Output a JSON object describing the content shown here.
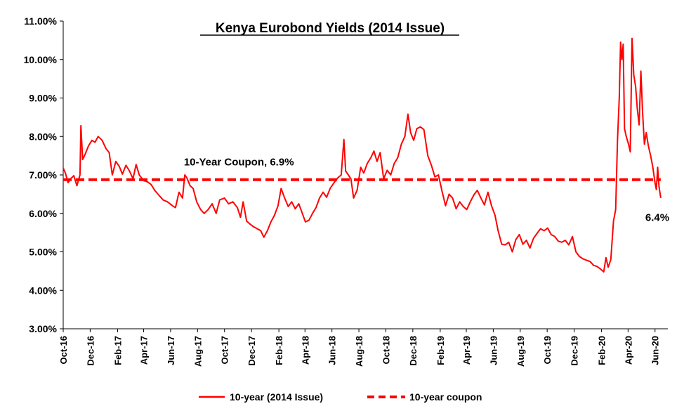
{
  "chart_data": {
    "type": "line",
    "title": "Kenya Eurobond  Yields (2014 Issue)",
    "xlabel": "",
    "ylabel": "",
    "ylim": [
      0.03,
      0.11
    ],
    "y_ticks": [
      "3.00%",
      "4.00%",
      "5.00%",
      "6.00%",
      "7.00%",
      "8.00%",
      "9.00%",
      "10.00%",
      "11.00%"
    ],
    "x_range": [
      "2016-10-01",
      "2020-06-30"
    ],
    "x_ticks": [
      {
        "label": "Oct-16",
        "date": "2016-10-01"
      },
      {
        "label": "Dec-16",
        "date": "2016-12-01"
      },
      {
        "label": "Feb-17",
        "date": "2017-02-01"
      },
      {
        "label": "Apr-17",
        "date": "2017-04-01"
      },
      {
        "label": "Jun-17",
        "date": "2017-06-01"
      },
      {
        "label": "Aug-17",
        "date": "2017-08-01"
      },
      {
        "label": "Oct-17",
        "date": "2017-10-01"
      },
      {
        "label": "Dec-17",
        "date": "2017-12-01"
      },
      {
        "label": "Feb-18",
        "date": "2018-02-01"
      },
      {
        "label": "Apr-18",
        "date": "2018-04-01"
      },
      {
        "label": "Jun-18",
        "date": "2018-06-01"
      },
      {
        "label": "Aug-18",
        "date": "2018-08-01"
      },
      {
        "label": "Oct-18",
        "date": "2018-10-01"
      },
      {
        "label": "Dec-18",
        "date": "2018-12-01"
      },
      {
        "label": "Feb-19",
        "date": "2019-02-01"
      },
      {
        "label": "Apr-19",
        "date": "2019-04-01"
      },
      {
        "label": "Jun-19",
        "date": "2019-06-01"
      },
      {
        "label": "Aug-19",
        "date": "2019-08-01"
      },
      {
        "label": "Oct-19",
        "date": "2019-10-01"
      },
      {
        "label": "Dec-19",
        "date": "2019-12-01"
      },
      {
        "label": "Feb-20",
        "date": "2020-02-01"
      },
      {
        "label": "Apr-20",
        "date": "2020-04-01"
      },
      {
        "label": "Jun-20",
        "date": "2020-06-01"
      }
    ],
    "grid": false,
    "legend_position": "bottom",
    "series": [
      {
        "name": "10-year (2014 Issue)",
        "color": "#ff0000",
        "style": "solid",
        "points": [
          {
            "x": "2016-10-01",
            "y": 0.0718
          },
          {
            "x": "2016-10-06",
            "y": 0.0705
          },
          {
            "x": "2016-10-12",
            "y": 0.068
          },
          {
            "x": "2016-10-18",
            "y": 0.069
          },
          {
            "x": "2016-10-25",
            "y": 0.0698
          },
          {
            "x": "2016-11-01",
            "y": 0.0672
          },
          {
            "x": "2016-11-08",
            "y": 0.07
          },
          {
            "x": "2016-11-10",
            "y": 0.0828
          },
          {
            "x": "2016-11-14",
            "y": 0.074
          },
          {
            "x": "2016-11-20",
            "y": 0.0755
          },
          {
            "x": "2016-11-27",
            "y": 0.0775
          },
          {
            "x": "2016-12-05",
            "y": 0.079
          },
          {
            "x": "2016-12-12",
            "y": 0.0785
          },
          {
            "x": "2016-12-19",
            "y": 0.08
          },
          {
            "x": "2016-12-28",
            "y": 0.079
          },
          {
            "x": "2017-01-06",
            "y": 0.0768
          },
          {
            "x": "2017-01-13",
            "y": 0.0758
          },
          {
            "x": "2017-01-20",
            "y": 0.07
          },
          {
            "x": "2017-01-28",
            "y": 0.0735
          },
          {
            "x": "2017-02-05",
            "y": 0.0722
          },
          {
            "x": "2017-02-12",
            "y": 0.0702
          },
          {
            "x": "2017-02-20",
            "y": 0.0725
          },
          {
            "x": "2017-02-28",
            "y": 0.071
          },
          {
            "x": "2017-03-08",
            "y": 0.069
          },
          {
            "x": "2017-03-15",
            "y": 0.0727
          },
          {
            "x": "2017-03-22",
            "y": 0.07
          },
          {
            "x": "2017-04-01",
            "y": 0.0685
          },
          {
            "x": "2017-04-10",
            "y": 0.0682
          },
          {
            "x": "2017-04-18",
            "y": 0.0675
          },
          {
            "x": "2017-04-26",
            "y": 0.066
          },
          {
            "x": "2017-05-05",
            "y": 0.0648
          },
          {
            "x": "2017-05-15",
            "y": 0.0635
          },
          {
            "x": "2017-05-25",
            "y": 0.063
          },
          {
            "x": "2017-06-05",
            "y": 0.062
          },
          {
            "x": "2017-06-12",
            "y": 0.0615
          },
          {
            "x": "2017-06-20",
            "y": 0.0655
          },
          {
            "x": "2017-06-28",
            "y": 0.064
          },
          {
            "x": "2017-07-03",
            "y": 0.07
          },
          {
            "x": "2017-07-08",
            "y": 0.0692
          },
          {
            "x": "2017-07-15",
            "y": 0.0672
          },
          {
            "x": "2017-07-22",
            "y": 0.0665
          },
          {
            "x": "2017-07-30",
            "y": 0.063
          },
          {
            "x": "2017-08-08",
            "y": 0.061
          },
          {
            "x": "2017-08-16",
            "y": 0.06
          },
          {
            "x": "2017-08-25",
            "y": 0.061
          },
          {
            "x": "2017-09-03",
            "y": 0.0625
          },
          {
            "x": "2017-09-12",
            "y": 0.06
          },
          {
            "x": "2017-09-20",
            "y": 0.0635
          },
          {
            "x": "2017-10-01",
            "y": 0.064
          },
          {
            "x": "2017-10-10",
            "y": 0.0625
          },
          {
            "x": "2017-10-20",
            "y": 0.063
          },
          {
            "x": "2017-10-30",
            "y": 0.0615
          },
          {
            "x": "2017-11-06",
            "y": 0.059
          },
          {
            "x": "2017-11-12",
            "y": 0.063
          },
          {
            "x": "2017-11-20",
            "y": 0.058
          },
          {
            "x": "2017-11-28",
            "y": 0.0572
          },
          {
            "x": "2017-12-06",
            "y": 0.0565
          },
          {
            "x": "2017-12-14",
            "y": 0.056
          },
          {
            "x": "2017-12-22",
            "y": 0.0555
          },
          {
            "x": "2017-12-29",
            "y": 0.0538
          },
          {
            "x": "2018-01-06",
            "y": 0.0555
          },
          {
            "x": "2018-01-14",
            "y": 0.0578
          },
          {
            "x": "2018-01-22",
            "y": 0.0595
          },
          {
            "x": "2018-01-30",
            "y": 0.062
          },
          {
            "x": "2018-02-06",
            "y": 0.0665
          },
          {
            "x": "2018-02-14",
            "y": 0.064
          },
          {
            "x": "2018-02-22",
            "y": 0.0618
          },
          {
            "x": "2018-03-02",
            "y": 0.063
          },
          {
            "x": "2018-03-10",
            "y": 0.0612
          },
          {
            "x": "2018-03-18",
            "y": 0.0625
          },
          {
            "x": "2018-03-26",
            "y": 0.06
          },
          {
            "x": "2018-04-02",
            "y": 0.0578
          },
          {
            "x": "2018-04-10",
            "y": 0.0582
          },
          {
            "x": "2018-04-18",
            "y": 0.06
          },
          {
            "x": "2018-04-26",
            "y": 0.0615
          },
          {
            "x": "2018-05-04",
            "y": 0.064
          },
          {
            "x": "2018-05-12",
            "y": 0.0655
          },
          {
            "x": "2018-05-20",
            "y": 0.0642
          },
          {
            "x": "2018-05-28",
            "y": 0.0665
          },
          {
            "x": "2018-06-06",
            "y": 0.068
          },
          {
            "x": "2018-06-14",
            "y": 0.0692
          },
          {
            "x": "2018-06-22",
            "y": 0.07
          },
          {
            "x": "2018-06-28",
            "y": 0.0792
          },
          {
            "x": "2018-07-02",
            "y": 0.071
          },
          {
            "x": "2018-07-08",
            "y": 0.07
          },
          {
            "x": "2018-07-14",
            "y": 0.069
          },
          {
            "x": "2018-07-20",
            "y": 0.064
          },
          {
            "x": "2018-07-28",
            "y": 0.066
          },
          {
            "x": "2018-08-05",
            "y": 0.072
          },
          {
            "x": "2018-08-12",
            "y": 0.0705
          },
          {
            "x": "2018-08-20",
            "y": 0.073
          },
          {
            "x": "2018-08-28",
            "y": 0.0745
          },
          {
            "x": "2018-09-04",
            "y": 0.0762
          },
          {
            "x": "2018-09-11",
            "y": 0.0735
          },
          {
            "x": "2018-09-18",
            "y": 0.0758
          },
          {
            "x": "2018-09-26",
            "y": 0.069
          },
          {
            "x": "2018-10-04",
            "y": 0.0712
          },
          {
            "x": "2018-10-12",
            "y": 0.07
          },
          {
            "x": "2018-10-20",
            "y": 0.073
          },
          {
            "x": "2018-10-28",
            "y": 0.0745
          },
          {
            "x": "2018-11-05",
            "y": 0.078
          },
          {
            "x": "2018-11-13",
            "y": 0.08
          },
          {
            "x": "2018-11-20",
            "y": 0.0858
          },
          {
            "x": "2018-11-26",
            "y": 0.081
          },
          {
            "x": "2018-12-03",
            "y": 0.079
          },
          {
            "x": "2018-12-10",
            "y": 0.082
          },
          {
            "x": "2018-12-18",
            "y": 0.0825
          },
          {
            "x": "2018-12-26",
            "y": 0.0818
          },
          {
            "x": "2019-01-04",
            "y": 0.075
          },
          {
            "x": "2019-01-12",
            "y": 0.0725
          },
          {
            "x": "2019-01-20",
            "y": 0.0695
          },
          {
            "x": "2019-01-28",
            "y": 0.07
          },
          {
            "x": "2019-02-05",
            "y": 0.0658
          },
          {
            "x": "2019-02-13",
            "y": 0.062
          },
          {
            "x": "2019-02-21",
            "y": 0.065
          },
          {
            "x": "2019-03-01",
            "y": 0.064
          },
          {
            "x": "2019-03-09",
            "y": 0.0612
          },
          {
            "x": "2019-03-17",
            "y": 0.063
          },
          {
            "x": "2019-03-25",
            "y": 0.0618
          },
          {
            "x": "2019-04-02",
            "y": 0.061
          },
          {
            "x": "2019-04-10",
            "y": 0.063
          },
          {
            "x": "2019-04-18",
            "y": 0.0648
          },
          {
            "x": "2019-04-26",
            "y": 0.066
          },
          {
            "x": "2019-05-04",
            "y": 0.064
          },
          {
            "x": "2019-05-12",
            "y": 0.0622
          },
          {
            "x": "2019-05-20",
            "y": 0.0655
          },
          {
            "x": "2019-05-28",
            "y": 0.062
          },
          {
            "x": "2019-06-05",
            "y": 0.0595
          },
          {
            "x": "2019-06-12",
            "y": 0.0555
          },
          {
            "x": "2019-06-20",
            "y": 0.052
          },
          {
            "x": "2019-06-28",
            "y": 0.0518
          },
          {
            "x": "2019-07-06",
            "y": 0.0525
          },
          {
            "x": "2019-07-14",
            "y": 0.05
          },
          {
            "x": "2019-07-22",
            "y": 0.0532
          },
          {
            "x": "2019-07-30",
            "y": 0.0545
          },
          {
            "x": "2019-08-07",
            "y": 0.052
          },
          {
            "x": "2019-08-15",
            "y": 0.053
          },
          {
            "x": "2019-08-23",
            "y": 0.051
          },
          {
            "x": "2019-08-31",
            "y": 0.0535
          },
          {
            "x": "2019-09-08",
            "y": 0.0548
          },
          {
            "x": "2019-09-16",
            "y": 0.056
          },
          {
            "x": "2019-09-24",
            "y": 0.0555
          },
          {
            "x": "2019-10-02",
            "y": 0.0562
          },
          {
            "x": "2019-10-10",
            "y": 0.0545
          },
          {
            "x": "2019-10-18",
            "y": 0.054
          },
          {
            "x": "2019-10-26",
            "y": 0.0528
          },
          {
            "x": "2019-11-03",
            "y": 0.0525
          },
          {
            "x": "2019-11-11",
            "y": 0.053
          },
          {
            "x": "2019-11-19",
            "y": 0.0518
          },
          {
            "x": "2019-11-27",
            "y": 0.054
          },
          {
            "x": "2019-12-05",
            "y": 0.05
          },
          {
            "x": "2019-12-13",
            "y": 0.0488
          },
          {
            "x": "2019-12-21",
            "y": 0.0482
          },
          {
            "x": "2019-12-29",
            "y": 0.0478
          },
          {
            "x": "2020-01-06",
            "y": 0.0475
          },
          {
            "x": "2020-01-14",
            "y": 0.0465
          },
          {
            "x": "2020-01-22",
            "y": 0.0462
          },
          {
            "x": "2020-01-30",
            "y": 0.0455
          },
          {
            "x": "2020-02-06",
            "y": 0.0448
          },
          {
            "x": "2020-02-11",
            "y": 0.0485
          },
          {
            "x": "2020-02-16",
            "y": 0.046
          },
          {
            "x": "2020-02-22",
            "y": 0.048
          },
          {
            "x": "2020-02-28",
            "y": 0.058
          },
          {
            "x": "2020-03-04",
            "y": 0.061
          },
          {
            "x": "2020-03-08",
            "y": 0.079
          },
          {
            "x": "2020-03-12",
            "y": 0.09
          },
          {
            "x": "2020-03-15",
            "y": 0.1045
          },
          {
            "x": "2020-03-18",
            "y": 0.1
          },
          {
            "x": "2020-03-21",
            "y": 0.104
          },
          {
            "x": "2020-03-24",
            "y": 0.082
          },
          {
            "x": "2020-03-28",
            "y": 0.08
          },
          {
            "x": "2020-04-02",
            "y": 0.078
          },
          {
            "x": "2020-04-06",
            "y": 0.076
          },
          {
            "x": "2020-04-10",
            "y": 0.1055
          },
          {
            "x": "2020-04-14",
            "y": 0.096
          },
          {
            "x": "2020-04-18",
            "y": 0.093
          },
          {
            "x": "2020-04-22",
            "y": 0.087
          },
          {
            "x": "2020-04-26",
            "y": 0.083
          },
          {
            "x": "2020-04-30",
            "y": 0.097
          },
          {
            "x": "2020-05-04",
            "y": 0.086
          },
          {
            "x": "2020-05-08",
            "y": 0.078
          },
          {
            "x": "2020-05-12",
            "y": 0.081
          },
          {
            "x": "2020-05-17",
            "y": 0.0775
          },
          {
            "x": "2020-05-22",
            "y": 0.075
          },
          {
            "x": "2020-05-27",
            "y": 0.072
          },
          {
            "x": "2020-06-01",
            "y": 0.068
          },
          {
            "x": "2020-06-04",
            "y": 0.0662
          },
          {
            "x": "2020-06-07",
            "y": 0.072
          },
          {
            "x": "2020-06-10",
            "y": 0.067
          },
          {
            "x": "2020-06-14",
            "y": 0.064
          }
        ]
      },
      {
        "name": "10-year coupon",
        "color": "#ff0000",
        "style": "dashed",
        "points": [
          {
            "x": "2016-10-01",
            "y": 0.06875
          },
          {
            "x": "2020-06-14",
            "y": 0.06875
          }
        ]
      }
    ],
    "annotations": [
      {
        "text": "10-Year Coupon, 6.9%",
        "x": "2017-07-01",
        "y": 0.0725
      },
      {
        "text": "6.4%",
        "x": "2020-05-10",
        "y": 0.058
      }
    ]
  }
}
